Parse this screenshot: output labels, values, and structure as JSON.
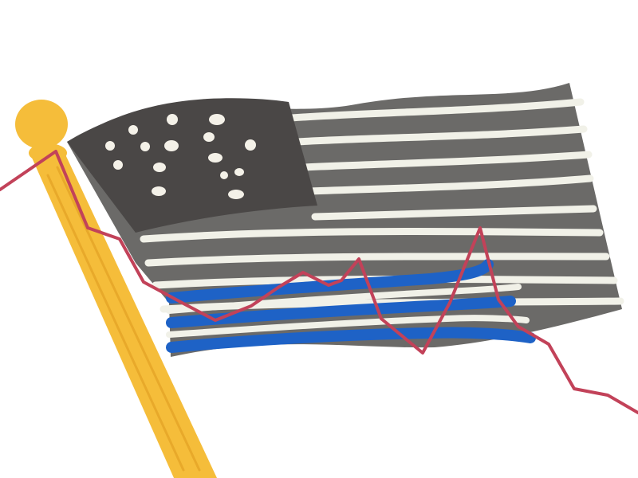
{
  "colors": {
    "background": "#ffffff",
    "pole": "#f5bd3a",
    "pole_outline": "#e8a92a",
    "canton": "#4a4746",
    "stripes_gray": "#6b6a68",
    "stripes_light": "#f1f1e8",
    "stripes_blue": "#1e62c6",
    "stars": "#f4f1e8",
    "line": "#c24259"
  },
  "icons": {
    "flag": "flag-icon",
    "pole": "flagpole-icon",
    "trend": "trend-line-icon"
  }
}
